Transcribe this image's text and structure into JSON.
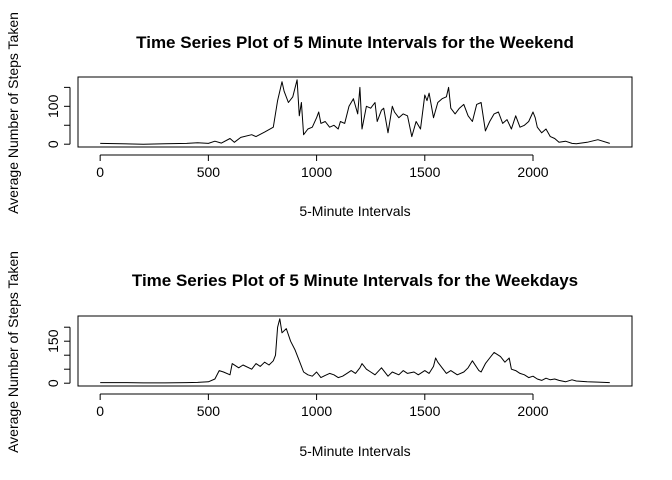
{
  "chart_data": [
    {
      "type": "line",
      "title": "Time Series Plot of 5 Minute Intervals for the Weekend",
      "xlabel": "5-Minute Intervals",
      "ylabel": "Average Number of Steps Taken",
      "xlim": [
        0,
        2355
      ],
      "ylim": [
        0,
        170
      ],
      "xticks": [
        0,
        500,
        1000,
        1500,
        2000
      ],
      "yticks": [
        0,
        100
      ],
      "grid": false,
      "color": "#000000",
      "x": [
        0,
        100,
        200,
        300,
        400,
        450,
        500,
        530,
        560,
        600,
        620,
        650,
        700,
        720,
        760,
        800,
        820,
        840,
        850,
        870,
        890,
        910,
        920,
        930,
        940,
        960,
        980,
        1000,
        1010,
        1020,
        1040,
        1060,
        1080,
        1100,
        1110,
        1130,
        1150,
        1170,
        1190,
        1200,
        1210,
        1230,
        1250,
        1270,
        1280,
        1300,
        1310,
        1330,
        1350,
        1360,
        1380,
        1400,
        1420,
        1440,
        1460,
        1480,
        1500,
        1510,
        1520,
        1540,
        1560,
        1580,
        1600,
        1610,
        1620,
        1640,
        1660,
        1680,
        1700,
        1720,
        1740,
        1760,
        1780,
        1800,
        1820,
        1840,
        1860,
        1880,
        1900,
        1920,
        1940,
        1960,
        1980,
        2000,
        2010,
        2020,
        2040,
        2060,
        2080,
        2100,
        2120,
        2150,
        2180,
        2200,
        2250,
        2300,
        2355
      ],
      "y": [
        2,
        1,
        0,
        1,
        2,
        4,
        2,
        8,
        3,
        15,
        5,
        18,
        25,
        20,
        32,
        45,
        115,
        165,
        140,
        110,
        125,
        170,
        75,
        110,
        25,
        40,
        45,
        70,
        85,
        55,
        60,
        45,
        50,
        40,
        60,
        55,
        100,
        120,
        80,
        150,
        40,
        100,
        95,
        110,
        60,
        90,
        95,
        30,
        100,
        85,
        70,
        80,
        75,
        20,
        60,
        40,
        130,
        115,
        135,
        70,
        110,
        120,
        125,
        150,
        95,
        80,
        95,
        105,
        75,
        60,
        105,
        110,
        35,
        60,
        80,
        85,
        55,
        65,
        40,
        75,
        45,
        50,
        60,
        85,
        70,
        45,
        30,
        40,
        20,
        15,
        5,
        8,
        2,
        1,
        5,
        12,
        2
      ]
    },
    {
      "type": "line",
      "title": "Time Series Plot of 5 Minute Intervals for the Weekdays",
      "xlabel": "5-Minute Intervals",
      "ylabel": "Average Number of Steps Taken",
      "xlim": [
        0,
        2355
      ],
      "ylim": [
        0,
        230
      ],
      "xticks": [
        0,
        500,
        1000,
        1500,
        2000
      ],
      "yticks": [
        0,
        150
      ],
      "grid": false,
      "color": "#000000",
      "x": [
        0,
        100,
        200,
        300,
        400,
        450,
        500,
        530,
        550,
        570,
        600,
        610,
        640,
        660,
        700,
        720,
        740,
        760,
        780,
        800,
        810,
        820,
        830,
        840,
        860,
        880,
        900,
        920,
        940,
        960,
        980,
        1000,
        1020,
        1040,
        1060,
        1080,
        1100,
        1120,
        1140,
        1160,
        1180,
        1200,
        1210,
        1230,
        1250,
        1270,
        1300,
        1330,
        1350,
        1380,
        1400,
        1420,
        1450,
        1470,
        1500,
        1520,
        1540,
        1550,
        1560,
        1580,
        1600,
        1620,
        1650,
        1680,
        1700,
        1720,
        1750,
        1760,
        1780,
        1800,
        1820,
        1840,
        1850,
        1870,
        1890,
        1900,
        1920,
        1940,
        1960,
        1980,
        2000,
        2020,
        2040,
        2060,
        2080,
        2100,
        2120,
        2150,
        2180,
        2200,
        2250,
        2300,
        2355
      ],
      "y": [
        2,
        2,
        1,
        1,
        2,
        3,
        5,
        15,
        45,
        40,
        30,
        70,
        55,
        65,
        50,
        70,
        60,
        75,
        65,
        80,
        100,
        200,
        230,
        180,
        195,
        150,
        120,
        80,
        40,
        30,
        25,
        40,
        20,
        28,
        35,
        30,
        20,
        25,
        35,
        45,
        35,
        55,
        70,
        50,
        40,
        30,
        55,
        25,
        40,
        30,
        45,
        35,
        40,
        30,
        45,
        35,
        60,
        90,
        75,
        55,
        35,
        45,
        30,
        40,
        55,
        80,
        45,
        40,
        70,
        90,
        110,
        100,
        95,
        75,
        90,
        50,
        45,
        35,
        30,
        20,
        25,
        15,
        10,
        18,
        12,
        15,
        10,
        5,
        12,
        8,
        5,
        4,
        2
      ]
    }
  ]
}
